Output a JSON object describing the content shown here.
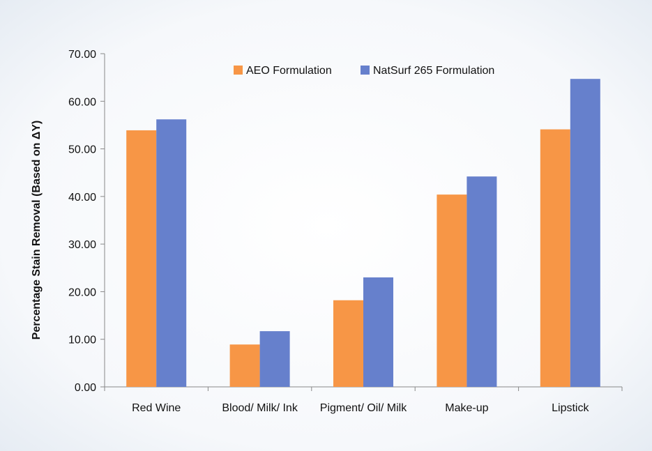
{
  "chart_data": {
    "type": "bar",
    "title": "",
    "xlabel": "",
    "ylabel": "Percentage  Stain Removal  (Based on ΔY)",
    "ylim": [
      0,
      70
    ],
    "yticks": [
      "0.00",
      "10.00",
      "20.00",
      "30.00",
      "40.00",
      "50.00",
      "60.00",
      "70.00"
    ],
    "categories": [
      "Red Wine",
      "Blood/ Milk/ Ink",
      "Pigment/ Oil/ Milk",
      "Make-up",
      "Lipstick"
    ],
    "series": [
      {
        "name": "AEO Formulation",
        "color": "#f79646",
        "values": [
          53.9,
          8.9,
          18.2,
          40.4,
          54.1
        ]
      },
      {
        "name": "NatSurf 265 Formulation",
        "color": "#6680cc",
        "values": [
          56.2,
          11.7,
          23.0,
          44.2,
          64.7
        ]
      }
    ],
    "legend": "top-center",
    "grid": false
  }
}
